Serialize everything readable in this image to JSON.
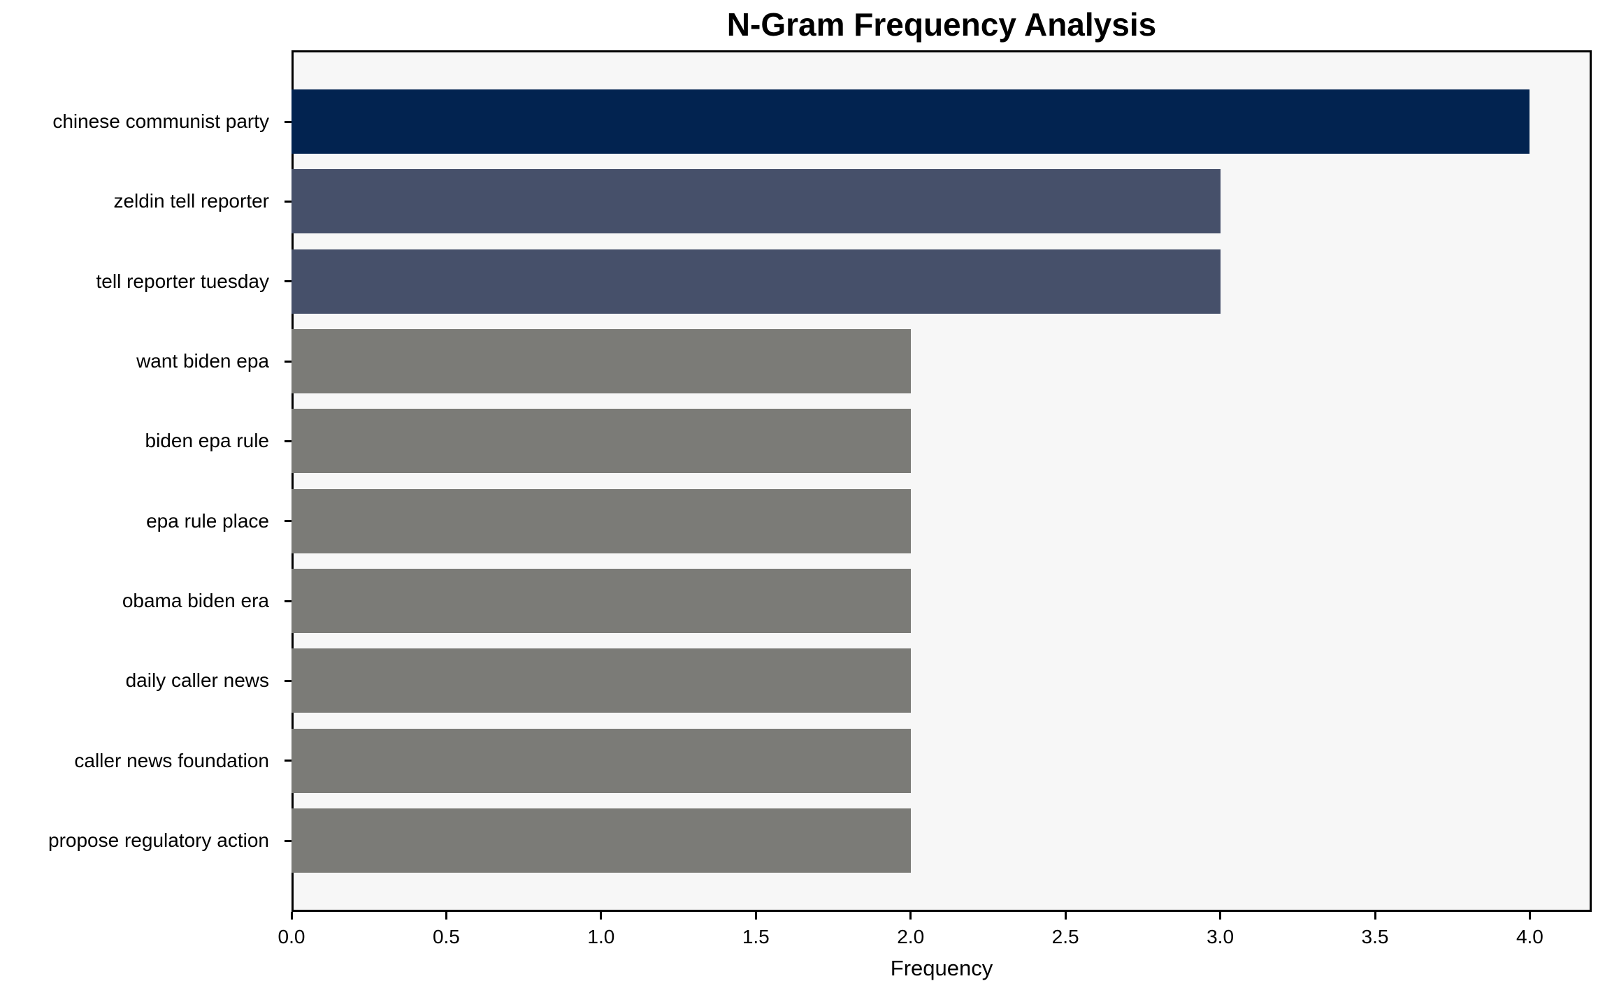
{
  "chart_data": {
    "type": "bar",
    "orientation": "horizontal",
    "title": "N-Gram Frequency Analysis",
    "xlabel": "Frequency",
    "ylabel": "",
    "categories": [
      "chinese communist party",
      "zeldin tell reporter",
      "tell reporter tuesday",
      "want biden epa",
      "biden epa rule",
      "epa rule place",
      "obama biden era",
      "daily caller news",
      "caller news foundation",
      "propose regulatory action"
    ],
    "values": [
      4,
      3,
      3,
      2,
      2,
      2,
      2,
      2,
      2,
      2
    ],
    "bar_colors": [
      "#022350",
      "#46506a",
      "#46506a",
      "#7b7b77",
      "#7b7b77",
      "#7b7b77",
      "#7b7b77",
      "#7b7b77",
      "#7b7b77",
      "#7b7b77"
    ],
    "xlim": [
      0,
      4.2
    ],
    "xticks": [
      0.0,
      0.5,
      1.0,
      1.5,
      2.0,
      2.5,
      3.0,
      3.5,
      4.0
    ],
    "xtick_labels": [
      "0.0",
      "0.5",
      "1.0",
      "1.5",
      "2.0",
      "2.5",
      "3.0",
      "3.5",
      "4.0"
    ],
    "grid": false,
    "legend": false,
    "plot_background_color": "#f7f7f7",
    "figure_background_color": "#ffffff",
    "spine_color": "#000000",
    "text_color": "#000000"
  }
}
